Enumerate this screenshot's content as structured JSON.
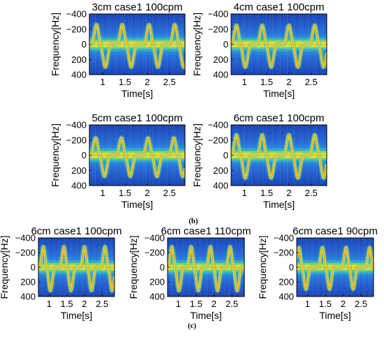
{
  "figure": {
    "captions": [
      "(b)",
      "(c)"
    ]
  },
  "colormap": [
    "#1c3fb5",
    "#2b6ad8",
    "#2aa6dd",
    "#3cc9c0",
    "#a8df4a",
    "#f3e328",
    "#e8a21f",
    "#d9532a"
  ],
  "chart_data": [
    {
      "type": "heatmap",
      "title": "3cm case1 100cpm",
      "xlabel": "Time[s]",
      "ylabel": "Frequency[Hz]",
      "xlim": [
        0.7,
        2.85
      ],
      "ylim": [
        -400,
        400
      ],
      "xticks": [
        1,
        1.5,
        2,
        2.5
      ],
      "xticklabels": [
        "1",
        "1.5",
        "2",
        "2.5"
      ],
      "yticks": [
        -400,
        -200,
        0,
        200,
        400
      ],
      "yticklabels": [
        "−400",
        "−200",
        "0",
        "200",
        "400"
      ],
      "peak_times": [
        0.86,
        1.44,
        2.04,
        2.62
      ],
      "peak_freq": -260,
      "trough_freq": 300
    },
    {
      "type": "heatmap",
      "title": "4cm case1 100cpm",
      "xlabel": "Time[s]",
      "ylabel": "Frequency[Hz]",
      "xlim": [
        0.7,
        2.85
      ],
      "ylim": [
        -400,
        400
      ],
      "xticks": [
        1,
        1.5,
        2,
        2.5
      ],
      "xticklabels": [
        "1",
        "1.5",
        "2",
        "2.5"
      ],
      "yticks": [
        -400,
        -200,
        0,
        200,
        400
      ],
      "yticklabels": [
        "−400",
        "−200",
        "0",
        "200",
        "400"
      ],
      "peak_times": [
        0.82,
        1.4,
        2.0,
        2.58
      ],
      "peak_freq": -250,
      "trough_freq": 300
    },
    {
      "type": "heatmap",
      "title": "5cm case1 100cpm",
      "xlabel": "Time[s]",
      "ylabel": "Frequency[Hz]",
      "xlim": [
        0.7,
        2.85
      ],
      "ylim": [
        -400,
        400
      ],
      "xticks": [
        1,
        1.5,
        2,
        2.5
      ],
      "xticklabels": [
        "1",
        "1.5",
        "2",
        "2.5"
      ],
      "yticks": [
        -400,
        -200,
        0,
        200,
        400
      ],
      "yticklabels": [
        "−400",
        "−200",
        "0",
        "200",
        "400"
      ],
      "peak_times": [
        0.84,
        1.42,
        2.02,
        2.6
      ],
      "peak_freq": -230,
      "trough_freq": 280
    },
    {
      "type": "heatmap",
      "title": "6cm case1 100cpm",
      "xlabel": "Time[s]",
      "ylabel": "Frequency[Hz]",
      "xlim": [
        0.7,
        2.85
      ],
      "ylim": [
        -400,
        400
      ],
      "xticks": [
        1,
        1.5,
        2,
        2.5
      ],
      "xticklabels": [
        "1",
        "1.5",
        "2",
        "2.5"
      ],
      "yticks": [
        -400,
        -200,
        0,
        200,
        400
      ],
      "yticklabels": [
        "−400",
        "−200",
        "0",
        "200",
        "400"
      ],
      "peak_times": [
        0.82,
        1.4,
        2.0,
        2.58
      ],
      "peak_freq": -270,
      "trough_freq": 300
    },
    {
      "type": "heatmap",
      "title": "6cm case1 100cpm",
      "xlabel": "Time[s]",
      "ylabel": "Frequency[Hz]",
      "xlim": [
        0.7,
        2.85
      ],
      "ylim": [
        -400,
        400
      ],
      "xticks": [
        1,
        1.5,
        2,
        2.5
      ],
      "xticklabels": [
        "1",
        "1.5",
        "2",
        "2.5"
      ],
      "yticks": [
        -400,
        -200,
        0,
        200,
        400
      ],
      "yticklabels": [
        "−400",
        "−200",
        "0",
        "200",
        "400"
      ],
      "peak_times": [
        0.84,
        1.42,
        2.0,
        2.58
      ],
      "peak_freq": -280,
      "trough_freq": 320
    },
    {
      "type": "heatmap",
      "title": "6cm case1 110cpm",
      "xlabel": "Time[s]",
      "ylabel": "Frequency[Hz]",
      "xlim": [
        0.7,
        2.85
      ],
      "ylim": [
        -400,
        400
      ],
      "xticks": [
        1,
        1.5,
        2,
        2.5
      ],
      "xticklabels": [
        "1",
        "1.5",
        "2",
        "2.5"
      ],
      "yticks": [
        -400,
        -200,
        0,
        200,
        400
      ],
      "yticklabels": [
        "−400",
        "−200",
        "0",
        "200",
        "400"
      ],
      "peak_times": [
        0.82,
        1.36,
        1.9,
        2.45
      ],
      "peak_freq": -280,
      "trough_freq": 320
    },
    {
      "type": "heatmap",
      "title": "6cm case1 90cpm",
      "xlabel": "Time[s]",
      "ylabel": "Frequency[Hz]",
      "xlim": [
        0.7,
        2.85
      ],
      "ylim": [
        -400,
        400
      ],
      "xticks": [
        1,
        1.5,
        2,
        2.5
      ],
      "xticklabels": [
        "1",
        "1.5",
        "2",
        "2.5"
      ],
      "yticks": [
        -400,
        -200,
        0,
        200,
        400
      ],
      "yticklabels": [
        "−400",
        "−200",
        "0",
        "200",
        "400"
      ],
      "peak_times": [
        0.76,
        1.42,
        2.08,
        2.74
      ],
      "peak_freq": -270,
      "trough_freq": 300
    }
  ]
}
